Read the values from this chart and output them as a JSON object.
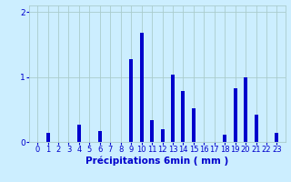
{
  "hours": [
    0,
    1,
    2,
    3,
    4,
    5,
    6,
    7,
    8,
    9,
    10,
    11,
    12,
    13,
    14,
    15,
    16,
    17,
    18,
    19,
    20,
    21,
    22,
    23
  ],
  "values": [
    0.0,
    0.14,
    0.0,
    0.0,
    0.27,
    0.0,
    0.17,
    0.0,
    0.0,
    1.28,
    1.68,
    0.33,
    0.2,
    1.04,
    0.78,
    0.52,
    0.0,
    0.0,
    0.11,
    0.82,
    1.0,
    0.42,
    0.0,
    0.14
  ],
  "bar_color": "#0000cc",
  "bg_color": "#cceeff",
  "grid_color": "#aacccc",
  "tick_color": "#0000cc",
  "label_color": "#0000cc",
  "title": "Précipitations 6min ( mm )",
  "ylim": [
    0,
    2.1
  ],
  "yticks": [
    0,
    1,
    2
  ],
  "bar_width": 0.35,
  "xlabel_fontsize": 7.5,
  "tick_fontsize": 6.5
}
